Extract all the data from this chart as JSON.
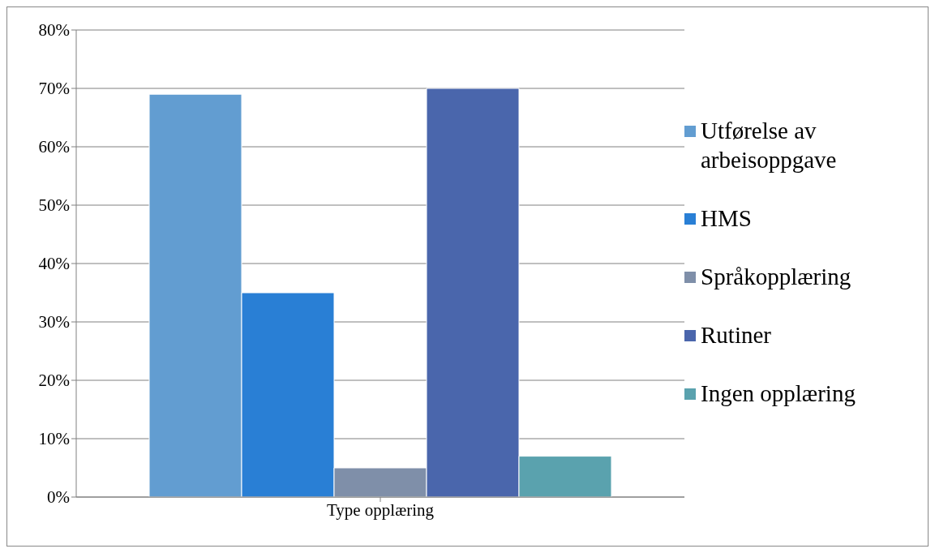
{
  "chart_data": {
    "type": "bar",
    "categories": [
      "Type opplæring"
    ],
    "series": [
      {
        "name": "Utførelse av arbeisoppgave",
        "color": "#629dd1",
        "values": [
          69
        ]
      },
      {
        "name": "HMS",
        "color": "#297fd5",
        "values": [
          35
        ]
      },
      {
        "name": "Språkopplæring",
        "color": "#7f8fa9",
        "values": [
          5
        ]
      },
      {
        "name": "Rutiner",
        "color": "#4a66ac",
        "values": [
          70
        ]
      },
      {
        "name": "Ingen opplæring",
        "color": "#5aa2ae",
        "values": [
          7
        ]
      }
    ],
    "ylim": [
      0,
      80
    ],
    "yticks": [
      {
        "value": 0,
        "label": "0%"
      },
      {
        "value": 10,
        "label": "10%"
      },
      {
        "value": 20,
        "label": "20%"
      },
      {
        "value": 30,
        "label": "30%"
      },
      {
        "value": 40,
        "label": "40%"
      },
      {
        "value": 50,
        "label": "50%"
      },
      {
        "value": 60,
        "label": "60%"
      },
      {
        "value": 70,
        "label": "70%"
      },
      {
        "value": 80,
        "label": "80%"
      }
    ],
    "grid": "y",
    "legend": "right"
  }
}
